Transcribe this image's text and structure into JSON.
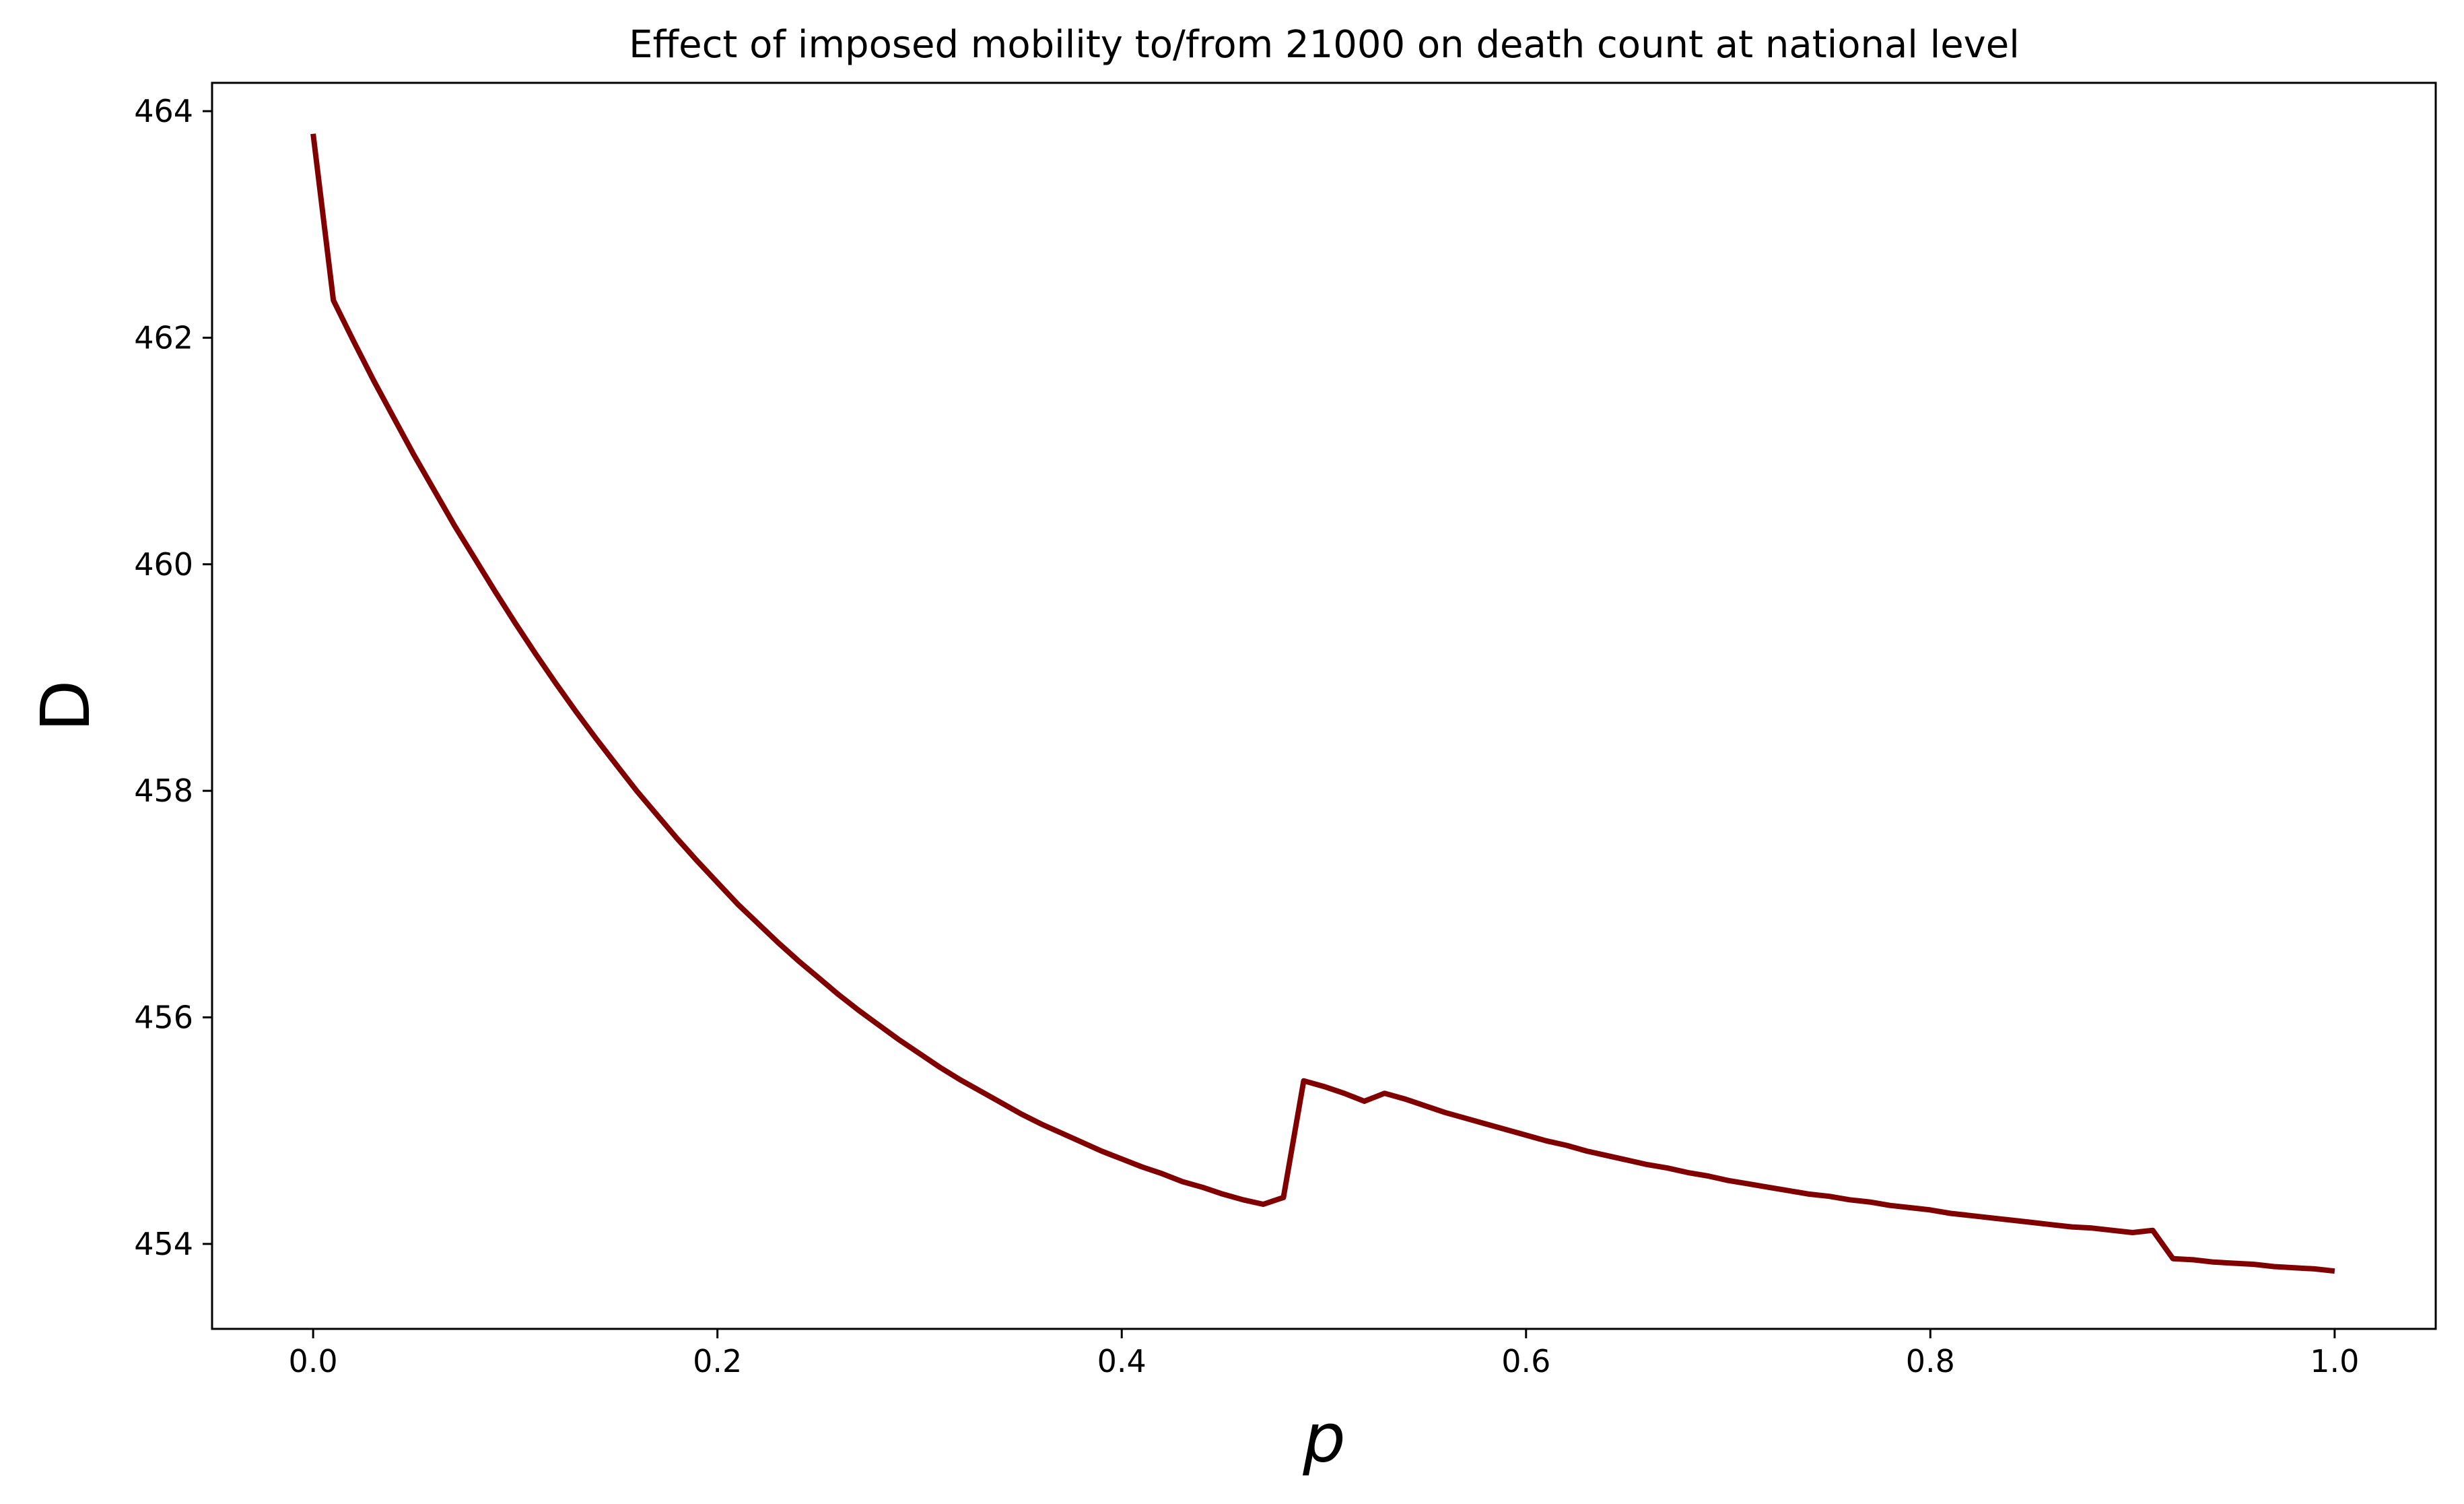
{
  "chart_data": {
    "type": "line",
    "title": "Effect of imposed mobility to/from 21000 on death count at national level",
    "xlabel": "p",
    "ylabel": "D",
    "xlim": [
      -0.05,
      1.05
    ],
    "ylim": [
      453.25,
      464.25
    ],
    "xticks": [
      0.0,
      0.2,
      0.4,
      0.6,
      0.8,
      1.0
    ],
    "xtick_labels": [
      "0.0",
      "0.2",
      "0.4",
      "0.6",
      "0.8",
      "1.0"
    ],
    "yticks": [
      454,
      456,
      458,
      460,
      462,
      464
    ],
    "ytick_labels": [
      "454",
      "456",
      "458",
      "460",
      "462",
      "464"
    ],
    "grid": false,
    "legend": false,
    "series": [
      {
        "color": "#800000",
        "x": [
          0.0,
          0.01,
          0.02,
          0.03,
          0.04,
          0.05,
          0.06,
          0.07,
          0.08,
          0.09,
          0.1,
          0.11,
          0.12,
          0.13,
          0.14,
          0.15,
          0.16,
          0.17,
          0.18,
          0.19,
          0.2,
          0.21,
          0.22,
          0.23,
          0.24,
          0.25,
          0.26,
          0.27,
          0.28,
          0.29,
          0.3,
          0.31,
          0.32,
          0.33,
          0.34,
          0.35,
          0.36,
          0.37,
          0.38,
          0.39,
          0.4,
          0.41,
          0.42,
          0.43,
          0.44,
          0.45,
          0.46,
          0.47,
          0.48,
          0.49,
          0.5,
          0.51,
          0.52,
          0.53,
          0.54,
          0.55,
          0.56,
          0.57,
          0.58,
          0.59,
          0.6,
          0.61,
          0.62,
          0.63,
          0.64,
          0.65,
          0.66,
          0.67,
          0.68,
          0.69,
          0.7,
          0.71,
          0.72,
          0.73,
          0.74,
          0.75,
          0.76,
          0.77,
          0.78,
          0.79,
          0.8,
          0.81,
          0.82,
          0.83,
          0.84,
          0.85,
          0.86,
          0.87,
          0.88,
          0.89,
          0.9,
          0.91,
          0.92,
          0.93,
          0.94,
          0.95,
          0.96,
          0.97,
          0.98,
          0.99,
          1.0
        ],
        "y": [
          463.8,
          462.33,
          461.97,
          461.62,
          461.29,
          460.96,
          460.65,
          460.34,
          460.05,
          459.76,
          459.48,
          459.21,
          458.95,
          458.7,
          458.46,
          458.23,
          458.0,
          457.79,
          457.58,
          457.38,
          457.19,
          457.0,
          456.83,
          456.66,
          456.5,
          456.35,
          456.2,
          456.06,
          455.93,
          455.8,
          455.68,
          455.56,
          455.45,
          455.35,
          455.25,
          455.15,
          455.06,
          454.98,
          454.9,
          454.82,
          454.75,
          454.68,
          454.62,
          454.55,
          454.5,
          454.44,
          454.39,
          454.35,
          454.41,
          455.44,
          455.39,
          455.33,
          455.26,
          455.33,
          455.28,
          455.22,
          455.16,
          455.11,
          455.06,
          455.01,
          454.96,
          454.91,
          454.87,
          454.82,
          454.78,
          454.74,
          454.7,
          454.67,
          454.63,
          454.6,
          454.56,
          454.53,
          454.5,
          454.47,
          454.44,
          454.42,
          454.39,
          454.37,
          454.34,
          454.32,
          454.3,
          454.27,
          454.25,
          454.23,
          454.21,
          454.19,
          454.17,
          454.15,
          454.14,
          454.12,
          454.1,
          454.12,
          453.87,
          453.86,
          453.84,
          453.83,
          453.82,
          453.8,
          453.79,
          453.78,
          453.76
        ]
      }
    ]
  }
}
